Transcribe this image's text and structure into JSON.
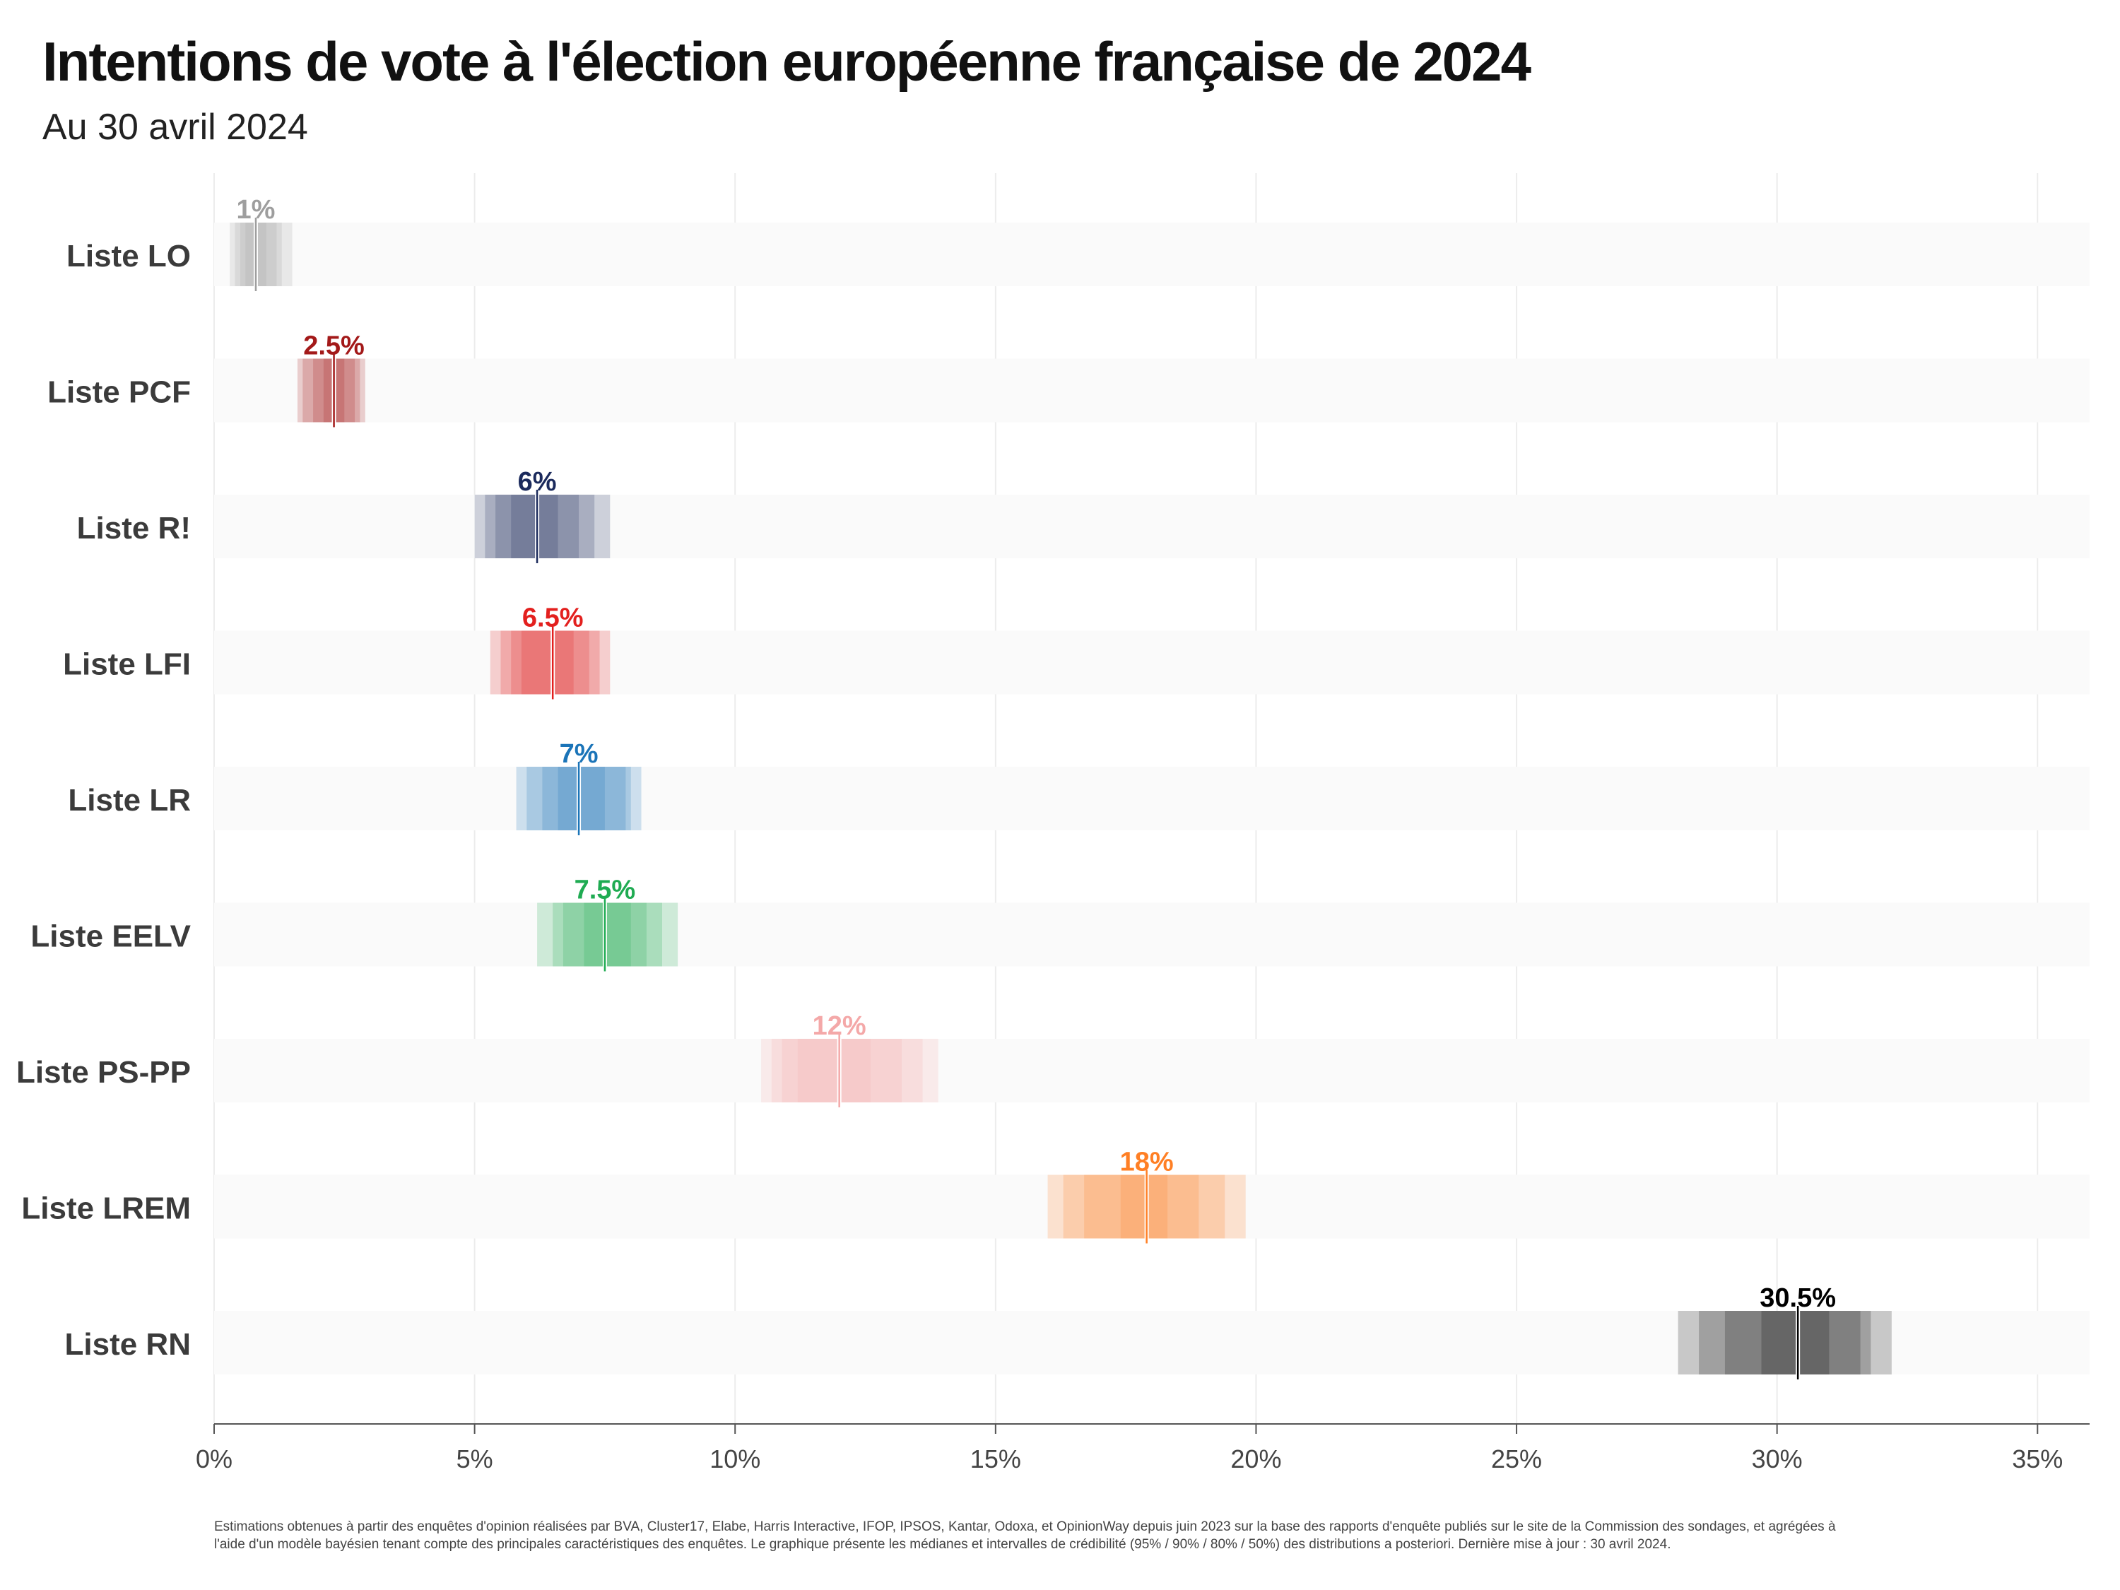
{
  "header": {
    "title": "Intentions de vote à l'élection européenne française de 2024",
    "subtitle": "Au 30 avril 2024"
  },
  "footnote": {
    "line1": "Estimations obtenues à partir des enquêtes d'opinion réalisées par BVA, Cluster17, Elabe, Harris Interactive, IFOP, IPSOS, Kantar, Odoxa, et OpinionWay depuis juin 2023 sur la base des rapports d'enquête publiés sur le site de la Commission des sondages, et agrégées à",
    "line2": "l'aide d'un modèle bayésien tenant compte des principales caractéristiques des enquêtes. Le graphique présente les médianes et intervalles de crédibilité (95% / 90% / 80% / 50%) des distributions a posteriori. Dernière mise à jour : 30 avril 2024."
  },
  "chart_data": {
    "type": "interval",
    "title": "Intentions de vote à l'élection européenne française de 2024",
    "subtitle": "Au 30 avril 2024",
    "xlabel": "",
    "ylabel": "",
    "xlim": [
      0,
      36
    ],
    "x_ticks": [
      0,
      5,
      10,
      15,
      20,
      25,
      30,
      35
    ],
    "x_tick_labels": [
      "0%",
      "5%",
      "10%",
      "15%",
      "20%",
      "25%",
      "30%",
      "35%"
    ],
    "grid": true,
    "interval_levels": [
      "95%",
      "90%",
      "80%",
      "50%"
    ],
    "series": [
      {
        "name": "Liste LO",
        "label": "1%",
        "median": 0.8,
        "ci95": [
          0.3,
          1.5
        ],
        "ci90": [
          0.4,
          1.3
        ],
        "ci80": [
          0.5,
          1.2
        ],
        "ci50": [
          0.6,
          1.0
        ],
        "color": "#9e9e9e"
      },
      {
        "name": "Liste PCF",
        "label": "2.5%",
        "median": 2.3,
        "ci95": [
          1.6,
          2.9
        ],
        "ci90": [
          1.7,
          2.8
        ],
        "ci80": [
          1.9,
          2.7
        ],
        "ci50": [
          2.1,
          2.5
        ],
        "color": "#a31919"
      },
      {
        "name": "Liste R!",
        "label": "6%",
        "median": 6.2,
        "ci95": [
          5.0,
          7.6
        ],
        "ci90": [
          5.2,
          7.3
        ],
        "ci80": [
          5.4,
          7.0
        ],
        "ci50": [
          5.7,
          6.6
        ],
        "color": "#1b2a5c"
      },
      {
        "name": "Liste LFI",
        "label": "6.5%",
        "median": 6.5,
        "ci95": [
          5.3,
          7.6
        ],
        "ci90": [
          5.5,
          7.4
        ],
        "ci80": [
          5.7,
          7.2
        ],
        "ci50": [
          5.9,
          6.9
        ],
        "color": "#e3201e"
      },
      {
        "name": "Liste LR",
        "label": "7%",
        "median": 7.0,
        "ci95": [
          5.8,
          8.2
        ],
        "ci90": [
          6.0,
          8.0
        ],
        "ci80": [
          6.3,
          7.9
        ],
        "ci50": [
          6.6,
          7.5
        ],
        "color": "#1a74b8"
      },
      {
        "name": "Liste EELV",
        "label": "7.5%",
        "median": 7.5,
        "ci95": [
          6.2,
          8.9
        ],
        "ci90": [
          6.5,
          8.6
        ],
        "ci80": [
          6.7,
          8.3
        ],
        "ci50": [
          7.1,
          8.0
        ],
        "color": "#1fab52"
      },
      {
        "name": "Liste PS-PP",
        "label": "12%",
        "median": 12.0,
        "ci95": [
          10.5,
          13.9
        ],
        "ci90": [
          10.7,
          13.6
        ],
        "ci80": [
          10.9,
          13.2
        ],
        "ci50": [
          11.2,
          12.6
        ],
        "color": "#f4a8a8"
      },
      {
        "name": "Liste LREM",
        "label": "18%",
        "median": 17.9,
        "ci95": [
          16.0,
          19.8
        ],
        "ci90": [
          16.3,
          19.4
        ],
        "ci80": [
          16.7,
          18.9
        ],
        "ci50": [
          17.4,
          18.3
        ],
        "color": "#ff7f24"
      },
      {
        "name": "Liste RN",
        "label": "30.5%",
        "median": 30.4,
        "ci95": [
          28.1,
          32.2
        ],
        "ci90": [
          28.5,
          31.8
        ],
        "ci80": [
          29.0,
          31.6
        ],
        "ci50": [
          29.7,
          31.0
        ],
        "color": "#000000"
      }
    ]
  }
}
